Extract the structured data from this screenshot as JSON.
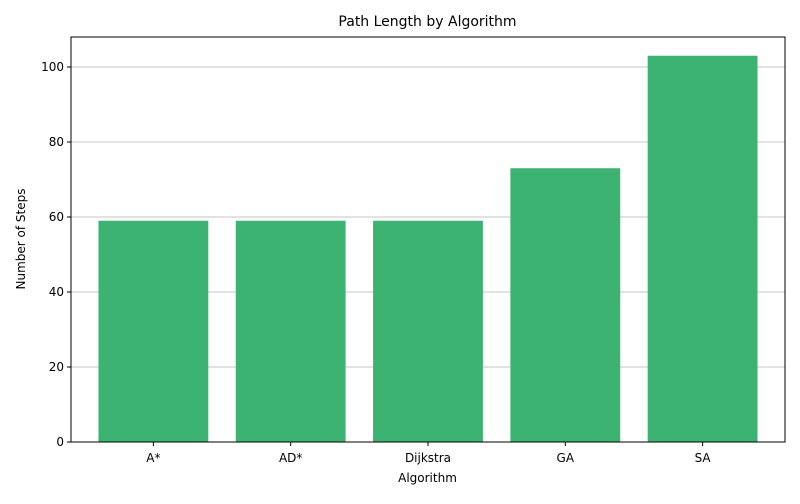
{
  "chart_data": {
    "type": "bar",
    "title": "Path Length by Algorithm",
    "xlabel": "Algorithm",
    "ylabel": "Number of Steps",
    "categories": [
      "A*",
      "AD*",
      "Dijkstra",
      "GA",
      "SA"
    ],
    "values": [
      59,
      59,
      59,
      73,
      103
    ],
    "ylim": [
      0,
      108
    ],
    "yticks": [
      0,
      20,
      40,
      60,
      80,
      100
    ],
    "grid": "y",
    "legend": "none",
    "bar_color": "#3cb371",
    "grid_color": "#b0b0b0",
    "axis_color": "#000000"
  }
}
